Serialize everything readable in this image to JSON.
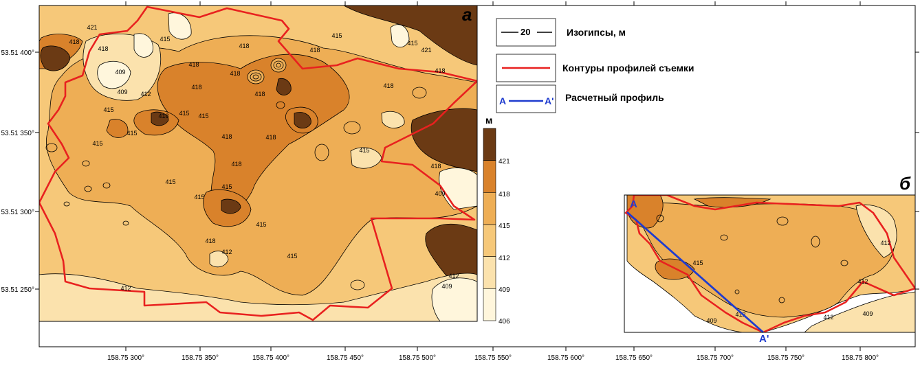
{
  "panels": {
    "main_letter": "а",
    "inset_letter": "б"
  },
  "legend": {
    "contour_sample": "20",
    "contour_label": "Изогипсы, м",
    "survey_label": "Контуры профилей съемки",
    "profile_label": "Расчетный профиль",
    "profile_start": "A",
    "profile_end": "A'"
  },
  "colorbar": {
    "unit": "м",
    "ticks": [
      "421",
      "418",
      "415",
      "412",
      "409",
      "406"
    ],
    "colors": [
      "#6b3a14",
      "#d9822b",
      "#eeae55",
      "#f6c879",
      "#fbe2ad",
      "#fff6dc"
    ]
  },
  "axes": {
    "x_ticks": [
      "158.75 300°",
      "158.75 350°",
      "158.75 400°",
      "158.75 450°",
      "158.75 500°",
      "158.75 550°",
      "158.75 600°",
      "158.75 650°",
      "158.75 700°",
      "158.75 750°",
      "158.75 800°"
    ],
    "y_ticks": [
      "53.51 400°",
      "53.51 350°",
      "53.51 300°",
      "53.51 250°"
    ]
  },
  "contour_labels": {
    "main": [
      "418",
      "418",
      "421",
      "409",
      "415",
      "418",
      "415",
      "418",
      "415",
      "421",
      "418",
      "418",
      "418",
      "409",
      "412",
      "418",
      "415",
      "418",
      "415",
      "418",
      "418",
      "418",
      "415",
      "415",
      "415",
      "418",
      "415",
      "415",
      "418",
      "415",
      "412",
      "415",
      "415",
      "418",
      "412",
      "415",
      "412",
      "409",
      "409",
      "418"
    ],
    "inset": [
      "415",
      "412",
      "409",
      "412",
      "412",
      "409",
      "412"
    ]
  },
  "colors": {
    "survey_contour": "#e8211f",
    "profile_line": "#1f3ccf",
    "profile_label": "#1f3ccf"
  }
}
